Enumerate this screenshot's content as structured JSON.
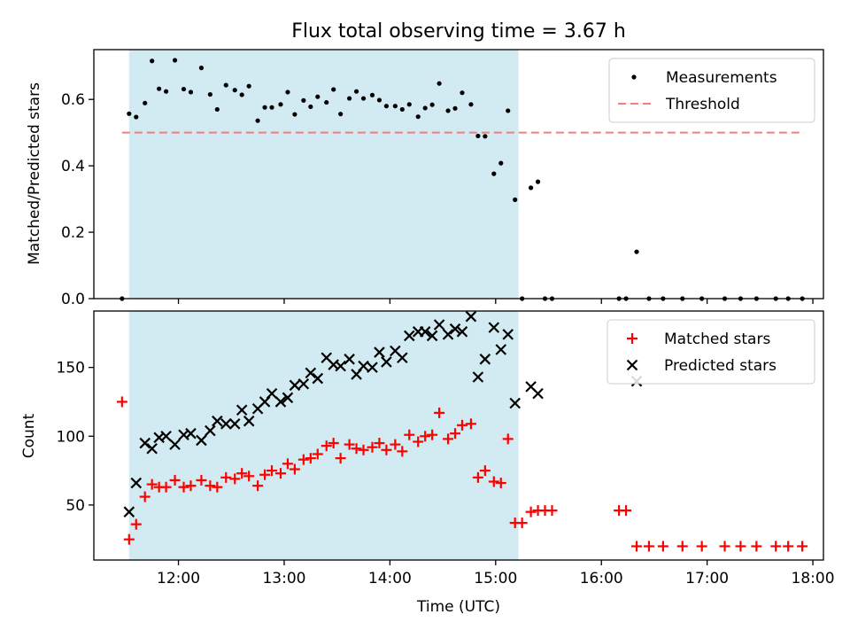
{
  "figure": {
    "title": "Flux total observing time = 3.67 h"
  },
  "chart_data": [
    {
      "type": "scatter",
      "panel": "top",
      "ylabel": "Matched/Predicted stars",
      "xlabel": "",
      "xlim": [
        "11:12",
        "18:06"
      ],
      "ylim": [
        0,
        0.75
      ],
      "yticks": [
        0.0,
        0.2,
        0.4,
        0.6
      ],
      "ytick_labels": [
        "0.0",
        "0.2",
        "0.4",
        "0.6"
      ],
      "xticks": [
        "12:00",
        "13:00",
        "14:00",
        "15:00",
        "16:00",
        "17:00",
        "18:00"
      ],
      "xtick_labels_visible": false,
      "shaded_interval": {
        "start": "11:32",
        "end": "15:13",
        "color": "#add8e6"
      },
      "legend_position": "top-right",
      "threshold": {
        "name": "Threshold",
        "value": 0.5,
        "start": "11:28",
        "end": "17:55",
        "color": "#f08080",
        "style": "dashed"
      },
      "series": [
        {
          "name": "Measurements",
          "color": "#000000",
          "marker": "dot",
          "points": [
            [
              "11:28",
              0.0
            ],
            [
              "11:32",
              0.557
            ],
            [
              "11:36",
              0.547
            ],
            [
              "11:41",
              0.589
            ],
            [
              "11:45",
              0.716
            ],
            [
              "11:49",
              0.632
            ],
            [
              "11:53",
              0.624
            ],
            [
              "11:58",
              0.718
            ],
            [
              "12:03",
              0.631
            ],
            [
              "12:07",
              0.622
            ],
            [
              "12:13",
              0.695
            ],
            [
              "12:18",
              0.615
            ],
            [
              "12:22",
              0.57
            ],
            [
              "12:27",
              0.643
            ],
            [
              "12:32",
              0.628
            ],
            [
              "12:36",
              0.614
            ],
            [
              "12:40",
              0.64
            ],
            [
              "12:45",
              0.536
            ],
            [
              "12:49",
              0.576
            ],
            [
              "12:53",
              0.576
            ],
            [
              "12:58",
              0.585
            ],
            [
              "13:02",
              0.622
            ],
            [
              "13:06",
              0.555
            ],
            [
              "13:11",
              0.597
            ],
            [
              "13:15",
              0.578
            ],
            [
              "13:19",
              0.608
            ],
            [
              "13:24",
              0.591
            ],
            [
              "13:28",
              0.63
            ],
            [
              "13:32",
              0.556
            ],
            [
              "13:37",
              0.603
            ],
            [
              "13:41",
              0.624
            ],
            [
              "13:45",
              0.603
            ],
            [
              "13:50",
              0.613
            ],
            [
              "13:54",
              0.598
            ],
            [
              "13:58",
              0.58
            ],
            [
              "14:03",
              0.58
            ],
            [
              "14:07",
              0.57
            ],
            [
              "14:11",
              0.585
            ],
            [
              "14:16",
              0.548
            ],
            [
              "14:20",
              0.574
            ],
            [
              "14:24",
              0.584
            ],
            [
              "14:28",
              0.648
            ],
            [
              "14:33",
              0.566
            ],
            [
              "14:37",
              0.573
            ],
            [
              "14:41",
              0.62
            ],
            [
              "14:46",
              0.585
            ],
            [
              "14:50",
              0.49
            ],
            [
              "14:54",
              0.489
            ],
            [
              "14:59",
              0.376
            ],
            [
              "15:03",
              0.408
            ],
            [
              "15:07",
              0.566
            ],
            [
              "15:11",
              0.298
            ],
            [
              "15:15",
              0.0
            ],
            [
              "15:20",
              0.334
            ],
            [
              "15:24",
              0.352
            ],
            [
              "15:28",
              0.0
            ],
            [
              "15:32",
              0.0
            ],
            [
              "16:10",
              0.0
            ],
            [
              "16:14",
              0.0
            ],
            [
              "16:20",
              0.141
            ],
            [
              "16:27",
              0.0
            ],
            [
              "16:35",
              0.0
            ],
            [
              "16:46",
              0.0
            ],
            [
              "16:57",
              0.0
            ],
            [
              "17:10",
              0.0
            ],
            [
              "17:19",
              0.0
            ],
            [
              "17:28",
              0.0
            ],
            [
              "17:39",
              0.0
            ],
            [
              "17:46",
              0.0
            ],
            [
              "17:54",
              0.0
            ]
          ]
        }
      ]
    },
    {
      "type": "scatter",
      "panel": "bottom",
      "ylabel": "Count",
      "xlabel": "Time (UTC)",
      "xlim": [
        "11:12",
        "18:06"
      ],
      "ylim": [
        10,
        191
      ],
      "yticks": [
        50,
        100,
        150
      ],
      "ytick_labels": [
        "50",
        "100",
        "150"
      ],
      "xticks": [
        "12:00",
        "13:00",
        "14:00",
        "15:00",
        "16:00",
        "17:00",
        "18:00"
      ],
      "xtick_labels": [
        "12:00",
        "13:00",
        "14:00",
        "15:00",
        "16:00",
        "17:00",
        "18:00"
      ],
      "shaded_interval": {
        "start": "11:32",
        "end": "15:13",
        "color": "#add8e6"
      },
      "legend_position": "top-right",
      "series": [
        {
          "name": "Matched stars",
          "color": "#ff0000",
          "marker": "plus",
          "points": [
            [
              "11:28",
              125
            ],
            [
              "11:32",
              25
            ],
            [
              "11:36",
              36
            ],
            [
              "11:41",
              56
            ],
            [
              "11:45",
              65
            ],
            [
              "11:49",
              63
            ],
            [
              "11:53",
              63
            ],
            [
              "11:58",
              68
            ],
            [
              "12:03",
              63
            ],
            [
              "12:07",
              64
            ],
            [
              "12:13",
              68
            ],
            [
              "12:18",
              64
            ],
            [
              "12:22",
              63
            ],
            [
              "12:27",
              70
            ],
            [
              "12:32",
              69
            ],
            [
              "12:36",
              73
            ],
            [
              "12:40",
              71
            ],
            [
              "12:45",
              64
            ],
            [
              "12:49",
              72
            ],
            [
              "12:53",
              75
            ],
            [
              "12:58",
              73
            ],
            [
              "13:02",
              80
            ],
            [
              "13:06",
              76
            ],
            [
              "13:11",
              83
            ],
            [
              "13:15",
              84
            ],
            [
              "13:19",
              87
            ],
            [
              "13:24",
              93
            ],
            [
              "13:28",
              95
            ],
            [
              "13:32",
              84
            ],
            [
              "13:37",
              94
            ],
            [
              "13:41",
              91
            ],
            [
              "13:45",
              90
            ],
            [
              "13:50",
              92
            ],
            [
              "13:54",
              95
            ],
            [
              "13:58",
              90
            ],
            [
              "14:03",
              94
            ],
            [
              "14:07",
              89
            ],
            [
              "14:11",
              101
            ],
            [
              "14:16",
              96
            ],
            [
              "14:20",
              100
            ],
            [
              "14:24",
              101
            ],
            [
              "14:28",
              117
            ],
            [
              "14:33",
              98
            ],
            [
              "14:37",
              102
            ],
            [
              "14:41",
              108
            ],
            [
              "14:46",
              109
            ],
            [
              "14:50",
              70
            ],
            [
              "14:54",
              75
            ],
            [
              "14:59",
              67
            ],
            [
              "15:03",
              66
            ],
            [
              "15:07",
              98
            ],
            [
              "15:11",
              37
            ],
            [
              "15:15",
              37
            ],
            [
              "15:20",
              45
            ],
            [
              "15:24",
              46
            ],
            [
              "15:28",
              46
            ],
            [
              "15:32",
              46
            ],
            [
              "16:10",
              46
            ],
            [
              "16:14",
              46
            ],
            [
              "16:20",
              20
            ],
            [
              "16:27",
              20
            ],
            [
              "16:35",
              20
            ],
            [
              "16:46",
              20
            ],
            [
              "16:57",
              20
            ],
            [
              "17:10",
              20
            ],
            [
              "17:19",
              20
            ],
            [
              "17:28",
              20
            ],
            [
              "17:39",
              20
            ],
            [
              "17:46",
              20
            ],
            [
              "17:54",
              20
            ]
          ]
        },
        {
          "name": "Predicted stars",
          "color": "#000000",
          "marker": "x",
          "points": [
            [
              "11:32",
              45
            ],
            [
              "11:36",
              66
            ],
            [
              "11:41",
              95
            ],
            [
              "11:45",
              91
            ],
            [
              "11:49",
              99
            ],
            [
              "11:53",
              100
            ],
            [
              "11:58",
              94
            ],
            [
              "12:03",
              101
            ],
            [
              "12:07",
              102
            ],
            [
              "12:13",
              97
            ],
            [
              "12:18",
              104
            ],
            [
              "12:22",
              111
            ],
            [
              "12:27",
              109
            ],
            [
              "12:32",
              109
            ],
            [
              "12:36",
              119
            ],
            [
              "12:40",
              111
            ],
            [
              "12:45",
              120
            ],
            [
              "12:49",
              125
            ],
            [
              "12:53",
              131
            ],
            [
              "12:58",
              125
            ],
            [
              "13:02",
              128
            ],
            [
              "13:06",
              137
            ],
            [
              "13:11",
              138
            ],
            [
              "13:15",
              146
            ],
            [
              "13:19",
              142
            ],
            [
              "13:24",
              157
            ],
            [
              "13:28",
              152
            ],
            [
              "13:32",
              151
            ],
            [
              "13:37",
              156
            ],
            [
              "13:41",
              145
            ],
            [
              "13:45",
              151
            ],
            [
              "13:50",
              150
            ],
            [
              "13:54",
              161
            ],
            [
              "13:58",
              154
            ],
            [
              "14:03",
              162
            ],
            [
              "14:07",
              157
            ],
            [
              "14:11",
              173
            ],
            [
              "14:16",
              176
            ],
            [
              "14:20",
              176
            ],
            [
              "14:24",
              173
            ],
            [
              "14:28",
              181
            ],
            [
              "14:33",
              174
            ],
            [
              "14:37",
              178
            ],
            [
              "14:41",
              176
            ],
            [
              "14:46",
              187
            ],
            [
              "14:50",
              143
            ],
            [
              "14:54",
              156
            ],
            [
              "14:59",
              179
            ],
            [
              "15:03",
              163
            ],
            [
              "15:07",
              174
            ],
            [
              "15:11",
              124
            ],
            [
              "15:20",
              136
            ],
            [
              "15:24",
              131
            ],
            [
              "16:20",
              140
            ]
          ]
        }
      ]
    }
  ]
}
